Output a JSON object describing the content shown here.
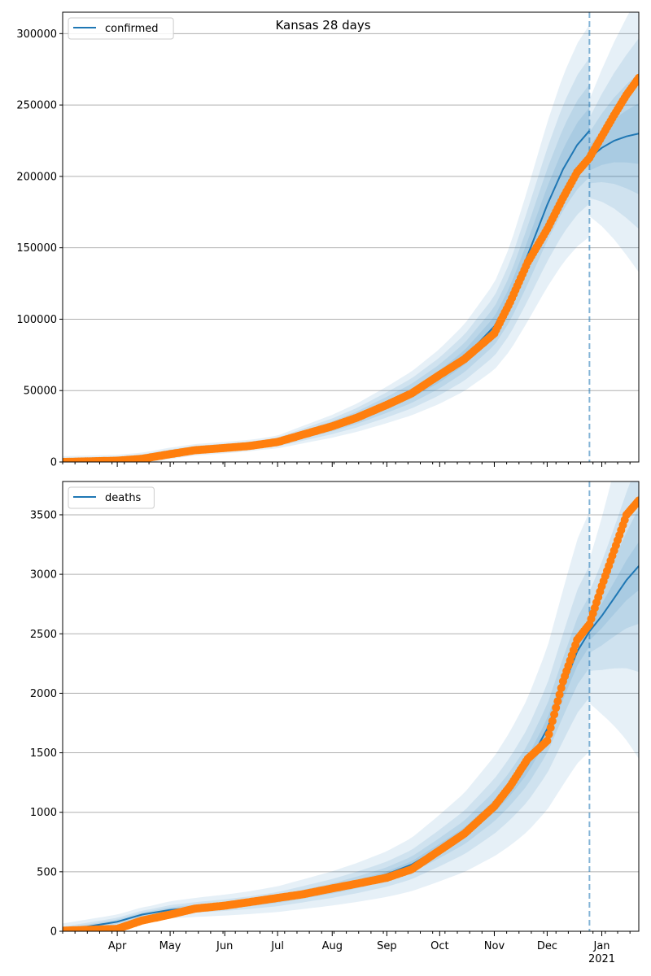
{
  "figure": {
    "title": "Kansas 28 days"
  },
  "x_axis": {
    "month_labels": [
      "Apr",
      "May",
      "Jun",
      "Jul",
      "Aug",
      "Sep",
      "Oct",
      "Nov",
      "Dec",
      "Jan"
    ],
    "year_label": "2021"
  },
  "colors": {
    "model_line": "#1f77b4",
    "observed_points": "#ff7f0e",
    "band": "#1f77b4",
    "grid": "#b0b0b0"
  },
  "chart_data": [
    {
      "type": "line",
      "legend": "confirmed",
      "legend_location": "top-left",
      "grid": true,
      "x_range": [
        "2020-03-01",
        "2021-01-22"
      ],
      "forecast_start": "2020-12-25",
      "ylim": [
        0,
        315000
      ],
      "yticks": [
        0,
        50000,
        100000,
        150000,
        200000,
        250000,
        300000
      ],
      "model_median": [
        [
          "2020-03-01",
          0
        ],
        [
          "2020-04-01",
          1000
        ],
        [
          "2020-04-15",
          2500
        ],
        [
          "2020-05-01",
          6000
        ],
        [
          "2020-05-15",
          8500
        ],
        [
          "2020-06-01",
          10000
        ],
        [
          "2020-06-15",
          11500
        ],
        [
          "2020-07-01",
          14000
        ],
        [
          "2020-07-15",
          19000
        ],
        [
          "2020-08-01",
          25000
        ],
        [
          "2020-08-15",
          31000
        ],
        [
          "2020-09-01",
          40000
        ],
        [
          "2020-09-15",
          48000
        ],
        [
          "2020-10-01",
          60000
        ],
        [
          "2020-10-15",
          73000
        ],
        [
          "2020-11-01",
          95000
        ],
        [
          "2020-11-10",
          115000
        ],
        [
          "2020-11-20",
          145000
        ],
        [
          "2020-12-01",
          180000
        ],
        [
          "2020-12-10",
          205000
        ],
        [
          "2020-12-18",
          222000
        ],
        [
          "2020-12-25",
          232000
        ]
      ],
      "forecast_median": [
        [
          "2020-12-25",
          213000
        ],
        [
          "2021-01-01",
          220000
        ],
        [
          "2021-01-08",
          225000
        ],
        [
          "2021-01-15",
          228000
        ],
        [
          "2021-01-22",
          230000
        ]
      ],
      "observed": [
        [
          "2020-03-01",
          0
        ],
        [
          "2020-04-01",
          900
        ],
        [
          "2020-04-15",
          2200
        ],
        [
          "2020-05-01",
          5500
        ],
        [
          "2020-05-15",
          8200
        ],
        [
          "2020-06-01",
          9800
        ],
        [
          "2020-06-15",
          11200
        ],
        [
          "2020-07-01",
          14000
        ],
        [
          "2020-07-15",
          19000
        ],
        [
          "2020-08-01",
          25000
        ],
        [
          "2020-08-15",
          31000
        ],
        [
          "2020-09-01",
          40000
        ],
        [
          "2020-09-15",
          48000
        ],
        [
          "2020-10-01",
          61000
        ],
        [
          "2020-10-15",
          72000
        ],
        [
          "2020-11-01",
          90000
        ],
        [
          "2020-11-10",
          112000
        ],
        [
          "2020-11-20",
          140000
        ],
        [
          "2020-12-01",
          163000
        ],
        [
          "2020-12-10",
          185000
        ],
        [
          "2020-12-18",
          203000
        ],
        [
          "2020-12-25",
          213000
        ],
        [
          "2021-01-01",
          228000
        ],
        [
          "2021-01-08",
          243000
        ],
        [
          "2021-01-15",
          257000
        ],
        [
          "2021-01-22",
          269000
        ]
      ],
      "band_widths": [
        0.07,
        0.14,
        0.22,
        0.32
      ]
    },
    {
      "type": "line",
      "legend": "deaths",
      "legend_location": "top-left",
      "grid": true,
      "x_range": [
        "2020-03-01",
        "2021-01-22"
      ],
      "forecast_start": "2020-12-25",
      "ylim": [
        0,
        3780
      ],
      "yticks": [
        0,
        500,
        1000,
        1500,
        2000,
        2500,
        3000,
        3500
      ],
      "model_median": [
        [
          "2020-03-01",
          5
        ],
        [
          "2020-04-01",
          80
        ],
        [
          "2020-04-15",
          140
        ],
        [
          "2020-05-01",
          180
        ],
        [
          "2020-05-15",
          200
        ],
        [
          "2020-06-01",
          220
        ],
        [
          "2020-06-15",
          240
        ],
        [
          "2020-07-01",
          270
        ],
        [
          "2020-07-15",
          310
        ],
        [
          "2020-08-01",
          360
        ],
        [
          "2020-08-15",
          410
        ],
        [
          "2020-09-01",
          480
        ],
        [
          "2020-09-15",
          560
        ],
        [
          "2020-10-01",
          700
        ],
        [
          "2020-10-15",
          830
        ],
        [
          "2020-11-01",
          1050
        ],
        [
          "2020-11-10",
          1200
        ],
        [
          "2020-11-20",
          1400
        ],
        [
          "2020-12-01",
          1700
        ],
        [
          "2020-12-10",
          2050
        ],
        [
          "2020-12-18",
          2350
        ],
        [
          "2020-12-25",
          2520
        ]
      ],
      "forecast_median": [
        [
          "2020-12-25",
          2520
        ],
        [
          "2021-01-01",
          2650
        ],
        [
          "2021-01-08",
          2800
        ],
        [
          "2021-01-15",
          2950
        ],
        [
          "2021-01-22",
          3070
        ]
      ],
      "observed": [
        [
          "2020-03-01",
          5
        ],
        [
          "2020-04-01",
          20
        ],
        [
          "2020-04-15",
          90
        ],
        [
          "2020-05-01",
          140
        ],
        [
          "2020-05-15",
          190
        ],
        [
          "2020-06-01",
          215
        ],
        [
          "2020-06-15",
          245
        ],
        [
          "2020-07-01",
          280
        ],
        [
          "2020-07-15",
          310
        ],
        [
          "2020-08-01",
          360
        ],
        [
          "2020-08-15",
          400
        ],
        [
          "2020-09-01",
          450
        ],
        [
          "2020-09-15",
          520
        ],
        [
          "2020-10-01",
          680
        ],
        [
          "2020-10-15",
          820
        ],
        [
          "2020-11-01",
          1050
        ],
        [
          "2020-11-10",
          1220
        ],
        [
          "2020-11-20",
          1450
        ],
        [
          "2020-12-01",
          1600
        ],
        [
          "2020-12-10",
          2100
        ],
        [
          "2020-12-18",
          2450
        ],
        [
          "2020-12-25",
          2580
        ],
        [
          "2021-01-01",
          2900
        ],
        [
          "2021-01-08",
          3200
        ],
        [
          "2021-01-15",
          3500
        ],
        [
          "2021-01-22",
          3620
        ]
      ],
      "band_widths": [
        0.05,
        0.12,
        0.22,
        0.4
      ]
    }
  ]
}
